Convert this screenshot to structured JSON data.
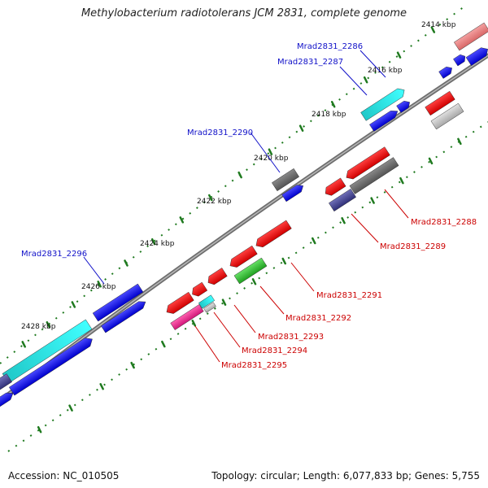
{
  "title": "Methylobacterium radiotolerans JCM 2831, complete genome",
  "footer": {
    "accession_label": "Accession:",
    "accession": "NC_010505",
    "topology_label": "Topology:",
    "topology": "circular;",
    "length_label": "Length:",
    "length": "6,077,833 bp;",
    "genes_label": "Genes:",
    "genes": "5,755"
  },
  "ticks": [
    "2414 kbp",
    "2416 kbp",
    "2418 kbp",
    "2420 kbp",
    "2422 kbp",
    "2424 kbp",
    "2426 kbp",
    "2428 kbp"
  ],
  "gene_labels": [
    {
      "text": "Mrad2831_2286",
      "strand": "forward"
    },
    {
      "text": "Mrad2831_2287",
      "strand": "forward"
    },
    {
      "text": "Mrad2831_2290",
      "strand": "forward"
    },
    {
      "text": "Mrad2831_2296",
      "strand": "forward"
    },
    {
      "text": "Mrad2831_2288",
      "strand": "reverse"
    },
    {
      "text": "Mrad2831_2289",
      "strand": "reverse"
    },
    {
      "text": "Mrad2831_2291",
      "strand": "reverse"
    },
    {
      "text": "Mrad2831_2292",
      "strand": "reverse"
    },
    {
      "text": "Mrad2831_2293",
      "strand": "reverse"
    },
    {
      "text": "Mrad2831_2294",
      "strand": "reverse"
    },
    {
      "text": "Mrad2831_2295",
      "strand": "reverse"
    }
  ],
  "colors": {
    "forward_label": "#1010c8",
    "reverse_label": "#cc0000",
    "backbone": "#808080",
    "tick_green": "#1f7a1f"
  }
}
